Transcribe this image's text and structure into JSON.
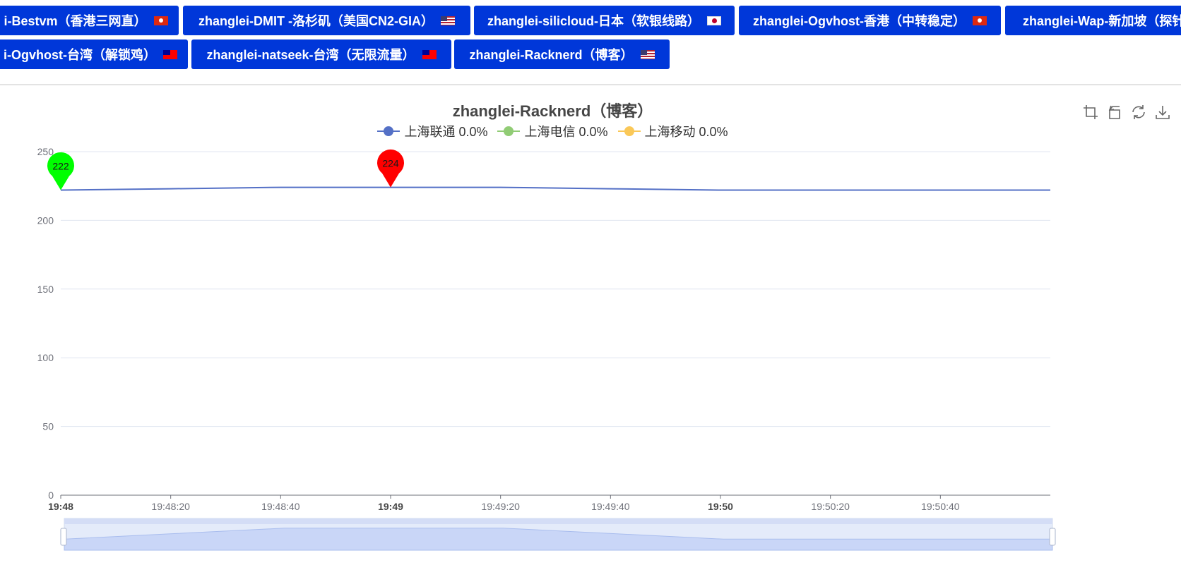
{
  "tabs_row1": [
    {
      "label": "i-Bestvm（香港三网直）",
      "flag": "hk"
    },
    {
      "label": "zhanglei-DMIT -洛杉矶（美国CN2-GIA）",
      "flag": "us"
    },
    {
      "label": "zhanglei-silicloud-日本（软银线路）",
      "flag": "jp"
    },
    {
      "label": "zhanglei-Ogvhost-香港（中转稳定）",
      "flag": "hk"
    },
    {
      "label": "zhanglei-Wap-新加坡（探针",
      "flag": ""
    }
  ],
  "tabs_row2": [
    {
      "label": "i-Ogvhost-台湾（解锁鸡）",
      "flag": "tw"
    },
    {
      "label": "zhanglei-natseek-台湾（无限流量）",
      "flag": "tw"
    },
    {
      "label": "zhanglei-Racknerd（博客）",
      "flag": "us"
    }
  ],
  "colors": {
    "tab_bg": "#0037d9",
    "unicom": "#5470c6",
    "telecom": "#91cc75",
    "mobile": "#fac858",
    "min_pin": "#00ff00",
    "max_pin": "#ff0000"
  },
  "toolbox": [
    {
      "name": "zoom-icon"
    },
    {
      "name": "zoom-reset-icon"
    },
    {
      "name": "restore-icon"
    },
    {
      "name": "download-icon"
    }
  ],
  "chart_data": {
    "type": "line",
    "title": "zhanglei-Racknerd（博客）",
    "legend": [
      {
        "label": "上海联通 0.0%",
        "color": "#5470c6"
      },
      {
        "label": "上海电信 0.0%",
        "color": "#91cc75"
      },
      {
        "label": "上海移动 0.0%",
        "color": "#fac858"
      }
    ],
    "ylim": [
      0,
      250
    ],
    "yticks": [
      "0",
      "50",
      "100",
      "150",
      "200",
      "250"
    ],
    "xticks": [
      {
        "label": "19:48",
        "bold": true
      },
      {
        "label": "19:48:20",
        "bold": false
      },
      {
        "label": "19:48:40",
        "bold": false
      },
      {
        "label": "19:49",
        "bold": true
      },
      {
        "label": "19:49:20",
        "bold": false
      },
      {
        "label": "19:49:40",
        "bold": false
      },
      {
        "label": "19:50",
        "bold": true
      },
      {
        "label": "19:50:20",
        "bold": false
      },
      {
        "label": "19:50:40",
        "bold": false
      }
    ],
    "xlim": [
      "19:48:00",
      "19:51:00"
    ],
    "series": [
      {
        "name": "上海联通",
        "color": "#5470c6",
        "x": [
          "19:48:00",
          "19:48:20",
          "19:48:40",
          "19:49:00",
          "19:49:20",
          "19:49:40",
          "19:50:00",
          "19:50:20",
          "19:50:40",
          "19:51:00"
        ],
        "values": [
          222,
          223,
          224,
          224,
          224,
          223,
          222,
          222,
          222,
          222
        ]
      }
    ],
    "markers": [
      {
        "type": "min",
        "label": "222",
        "x": "19:48:00",
        "value": 222,
        "color": "#00ff00"
      },
      {
        "type": "max",
        "label": "224",
        "x": "19:49:00",
        "value": 224,
        "color": "#ff0000"
      }
    ],
    "grid": true
  }
}
